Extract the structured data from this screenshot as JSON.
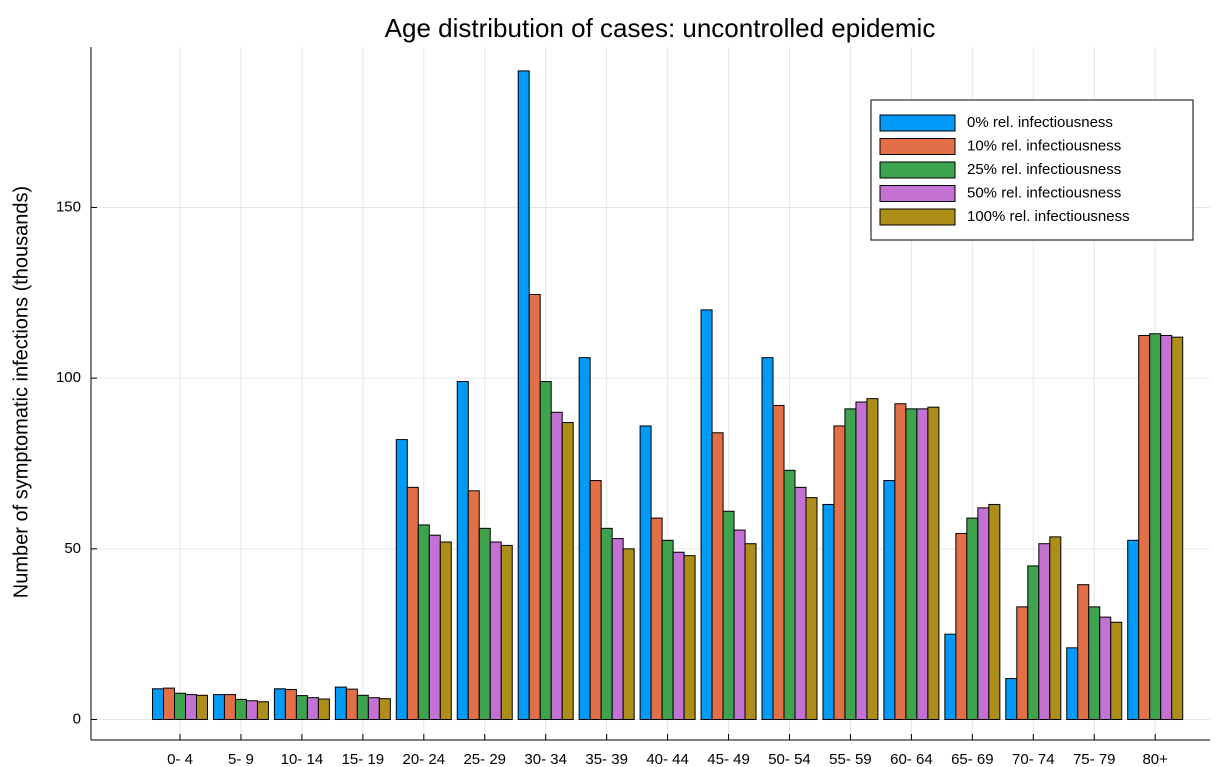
{
  "chart_data": {
    "type": "bar",
    "title": "Age distribution of cases: uncontrolled epidemic",
    "y_label": "Number of symptomatic infections (thousands)",
    "categories": [
      "0- 4",
      "5- 9",
      "10- 14",
      "15- 19",
      "20- 24",
      "25- 29",
      "30- 34",
      "35- 39",
      "40- 44",
      "45- 49",
      "50- 54",
      "55- 59",
      "60- 64",
      "65- 69",
      "70- 74",
      "75- 79",
      "80+"
    ],
    "series": [
      {
        "name": "0% rel. infectiousness",
        "color": "#009af9",
        "values": [
          9,
          7.3,
          9,
          9.5,
          82,
          99,
          190,
          106,
          86,
          120,
          106,
          63,
          70,
          25,
          12,
          21,
          52.5
        ]
      },
      {
        "name": "10% rel. infectiousness",
        "color": "#e26f46",
        "values": [
          9.2,
          7.3,
          8.8,
          8.9,
          68,
          67,
          124.5,
          70,
          59,
          84,
          92,
          86,
          92.5,
          54.5,
          33,
          39.5,
          112.5
        ]
      },
      {
        "name": "25% rel. infectiousness",
        "color": "#3da44d",
        "values": [
          7.7,
          5.9,
          7,
          7.1,
          57,
          56,
          99,
          56,
          52.5,
          61,
          73,
          91,
          91,
          59,
          45,
          33,
          113
        ]
      },
      {
        "name": "50% rel. infectiousness",
        "color": "#c371d2",
        "values": [
          7.3,
          5.5,
          6.4,
          6.4,
          54,
          52,
          90,
          53,
          49,
          55.5,
          68,
          93,
          91,
          62,
          51.5,
          30,
          112.5
        ]
      },
      {
        "name": "100% rel. infectiousness",
        "color": "#ac8e18",
        "values": [
          7.1,
          5.2,
          6,
          6.1,
          52,
          51,
          87,
          50,
          48,
          51.5,
          65,
          94,
          91.5,
          63,
          53.5,
          28.5,
          112
        ]
      }
    ],
    "ylim": [
      -6,
      197
    ],
    "yticks": [
      0,
      50,
      100,
      150
    ],
    "grid": true,
    "legend": "top-right"
  }
}
